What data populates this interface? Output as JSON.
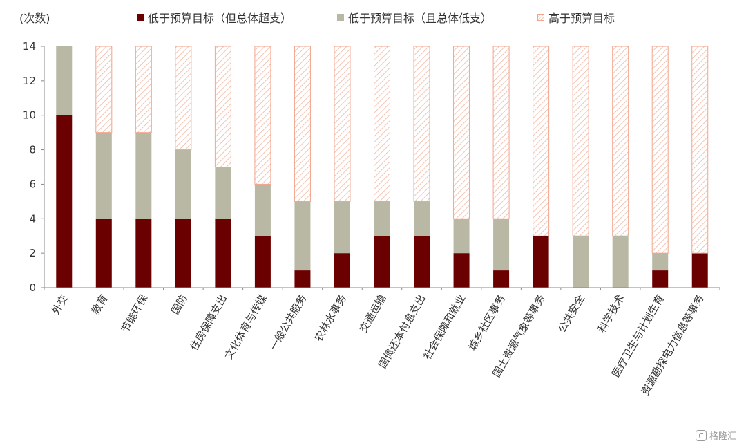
{
  "chart_data": {
    "type": "bar",
    "stacked": true,
    "unit_label": "(次数)",
    "title": "",
    "xlabel": "",
    "ylabel": "",
    "ylim": [
      0,
      14
    ],
    "yticks": [
      0,
      2,
      4,
      6,
      8,
      10,
      12,
      14
    ],
    "grid": false,
    "legend_position": "top",
    "categories": [
      "外交",
      "教育",
      "节能环保",
      "国防",
      "住房保障支出",
      "文化体育与传媒",
      "一般公共服务",
      "农林水事务",
      "交通运输",
      "国债还本付息支出",
      "社会保障和就业",
      "城乡社区事务",
      "国土资源气象等事务",
      "公共安全",
      "科学技术",
      "医疗卫生与计划生育",
      "资源勘探电力信息等事务"
    ],
    "series": [
      {
        "name": "低于预算目标（但总体超支）",
        "color": "#6b0000",
        "pattern": "solid",
        "values": [
          10,
          4,
          4,
          4,
          4,
          3,
          1,
          2,
          3,
          3,
          2,
          1,
          3,
          0,
          0,
          1,
          2
        ]
      },
      {
        "name": "低于预算目标（且总体低支）",
        "color": "#b8b8a4",
        "pattern": "solid",
        "values": [
          4,
          5,
          5,
          4,
          3,
          3,
          4,
          3,
          2,
          2,
          2,
          3,
          0,
          3,
          3,
          1,
          0
        ]
      },
      {
        "name": "高于预算目标",
        "color": "#f2a68e",
        "pattern": "hatched",
        "values": [
          0,
          5,
          5,
          6,
          7,
          8,
          9,
          9,
          9,
          9,
          10,
          10,
          11,
          11,
          11,
          12,
          12
        ]
      }
    ]
  },
  "watermark": "格隆汇"
}
